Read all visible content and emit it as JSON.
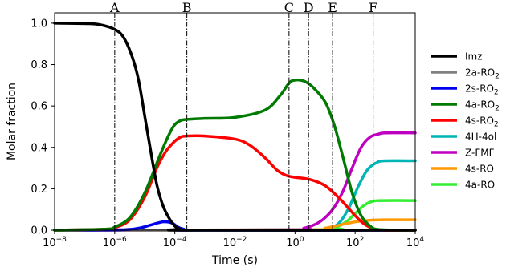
{
  "chart_data": {
    "type": "line",
    "xlabel": "Time (s)",
    "ylabel": "Molar fraction",
    "xscale": "log",
    "xlim": [
      -8,
      4
    ],
    "ylim": [
      0,
      1.05
    ],
    "x_ticks": [
      {
        "exp": -8,
        "base": "10",
        "sup": "−8"
      },
      {
        "exp": -6,
        "base": "10",
        "sup": "−6"
      },
      {
        "exp": -4,
        "base": "10",
        "sup": "−4"
      },
      {
        "exp": -2,
        "base": "10",
        "sup": "−2"
      },
      {
        "exp": 0,
        "base": "10",
        "sup": "0"
      },
      {
        "exp": 2,
        "base": "10",
        "sup": "2"
      },
      {
        "exp": 4,
        "base": "10",
        "sup": "4"
      }
    ],
    "y_ticks": [
      {
        "v": 0.0,
        "label": "0.0"
      },
      {
        "v": 0.2,
        "label": "0.2"
      },
      {
        "v": 0.4,
        "label": "0.4"
      },
      {
        "v": 0.6,
        "label": "0.6"
      },
      {
        "v": 0.8,
        "label": "0.8"
      },
      {
        "v": 1.0,
        "label": "1.0"
      }
    ],
    "markers": [
      {
        "label": "A",
        "log_t": -6.0
      },
      {
        "label": "B",
        "log_t": -3.6
      },
      {
        "label": "C",
        "log_t": -0.2
      },
      {
        "label": "D",
        "log_t": 0.45
      },
      {
        "label": "E",
        "log_t": 1.25
      },
      {
        "label": "F",
        "log_t": 2.6
      }
    ],
    "legend_position": "right",
    "grid": false,
    "series": [
      {
        "key": "imz",
        "name": "Imz",
        "color": "#000000",
        "log_t": [
          -8,
          -7,
          -6.5,
          -6,
          -5.7,
          -5.4,
          -5.2,
          -5,
          -4.8,
          -4.6,
          -4.4,
          -4.2,
          -4.0,
          -3.8,
          -3.6,
          4
        ],
        "values": [
          1.0,
          0.998,
          0.993,
          0.97,
          0.93,
          0.83,
          0.72,
          0.55,
          0.38,
          0.22,
          0.12,
          0.06,
          0.02,
          0.005,
          0.0,
          0.0
        ]
      },
      {
        "key": "2a",
        "name": "2a-RO",
        "sub": "2",
        "color": "#808080",
        "log_t": [
          -8,
          4
        ],
        "values": [
          0.0,
          0.0
        ]
      },
      {
        "key": "2s",
        "name": "2s-RO",
        "sub": "2",
        "color": "#0000ee",
        "log_t": [
          -8,
          -5.8,
          -5.2,
          -4.8,
          -4.4,
          -4.1,
          -3.9,
          -3.7,
          -3.4,
          4
        ],
        "values": [
          0.0,
          0.002,
          0.01,
          0.025,
          0.04,
          0.035,
          0.015,
          0.005,
          0.0,
          0.0
        ]
      },
      {
        "key": "4a",
        "name": "4a-RO",
        "sub": "2",
        "color": "#007a00",
        "log_t": [
          -8,
          -6.3,
          -6.0,
          -5.5,
          -5.0,
          -4.5,
          -4.2,
          -4.0,
          -3.8,
          -3.6,
          -3.0,
          -2.0,
          -1.0,
          -0.5,
          -0.2,
          0.0,
          0.3,
          0.6,
          1.0,
          1.3,
          1.6,
          1.9,
          2.2,
          2.5,
          2.8,
          4
        ],
        "values": [
          0.0,
          0.005,
          0.015,
          0.06,
          0.18,
          0.36,
          0.46,
          0.51,
          0.53,
          0.535,
          0.54,
          0.545,
          0.58,
          0.65,
          0.71,
          0.725,
          0.72,
          0.69,
          0.62,
          0.51,
          0.35,
          0.18,
          0.07,
          0.02,
          0.003,
          0.0
        ]
      },
      {
        "key": "4s",
        "name": "4s-RO",
        "sub": "2",
        "color": "#ff0000",
        "log_t": [
          -8,
          -6.3,
          -6.0,
          -5.5,
          -5.0,
          -4.6,
          -4.3,
          -4.0,
          -3.8,
          -3.6,
          -3.0,
          -2.0,
          -1.5,
          -1.0,
          -0.6,
          -0.3,
          0.0,
          0.5,
          1.0,
          1.5,
          2.0,
          2.3,
          2.6,
          3.0,
          4
        ],
        "values": [
          0.0,
          0.005,
          0.012,
          0.05,
          0.16,
          0.3,
          0.38,
          0.43,
          0.45,
          0.455,
          0.455,
          0.44,
          0.41,
          0.35,
          0.29,
          0.265,
          0.255,
          0.245,
          0.215,
          0.15,
          0.07,
          0.03,
          0.008,
          0.0,
          0.0
        ]
      },
      {
        "key": "4h",
        "name": "4H-4ol",
        "color": "#00b5b5",
        "log_t": [
          -8,
          0.8,
          1.2,
          1.5,
          1.8,
          2.1,
          2.4,
          2.7,
          3.0,
          4
        ],
        "values": [
          0.0,
          0.002,
          0.01,
          0.04,
          0.11,
          0.21,
          0.29,
          0.325,
          0.335,
          0.335
        ]
      },
      {
        "key": "zfmf",
        "name": "Z-FMF",
        "color": "#c000c0",
        "log_t": [
          -8,
          -0.2,
          0.3,
          0.7,
          1.0,
          1.3,
          1.6,
          1.9,
          2.2,
          2.5,
          2.8,
          3.0,
          4
        ],
        "values": [
          0.0,
          0.002,
          0.01,
          0.03,
          0.06,
          0.11,
          0.19,
          0.3,
          0.4,
          0.45,
          0.465,
          0.47,
          0.47
        ]
      },
      {
        "key": "4sro",
        "name": "4s-RO",
        "color": "#ff9900",
        "log_t": [
          -8,
          0.5,
          1.0,
          1.5,
          2.0,
          2.5,
          3.0,
          4
        ],
        "values": [
          0.0,
          0.002,
          0.01,
          0.025,
          0.04,
          0.048,
          0.05,
          0.05
        ]
      },
      {
        "key": "4aro",
        "name": "4a-RO",
        "color": "#33ee33",
        "log_t": [
          -8,
          0.8,
          1.3,
          1.7,
          2.0,
          2.3,
          2.6,
          3.0,
          4
        ],
        "values": [
          0.0,
          0.002,
          0.01,
          0.04,
          0.08,
          0.12,
          0.14,
          0.143,
          0.143
        ]
      }
    ]
  }
}
